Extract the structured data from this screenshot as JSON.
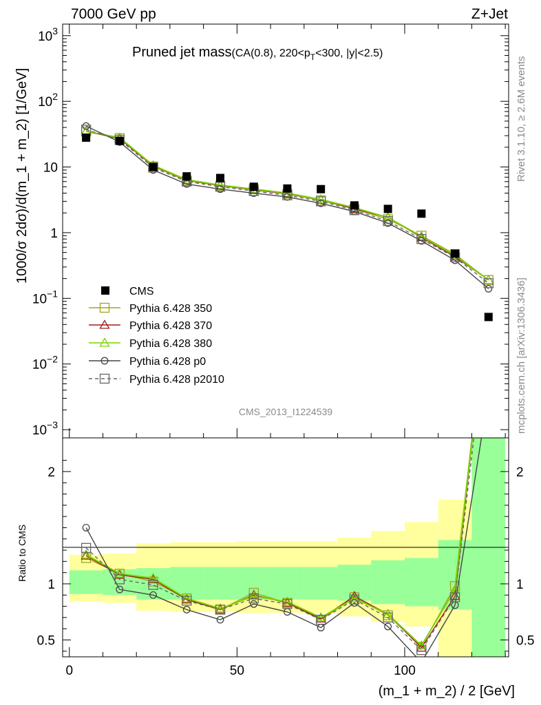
{
  "header": {
    "left": "7000 GeV pp",
    "right": "Z+Jet"
  },
  "title": {
    "main": "Pruned jet mass",
    "sub_a": "(CA(0.8), 220<p",
    "sub_b": "T",
    "sub_c": "<300, |y|<2.5)"
  },
  "side": {
    "top": "Rivet 3.1.10, ≥ 2.6M events",
    "bottom": "mcplots.cern.ch [arXiv:1306.3436]"
  },
  "analysis_id": "CMS_2013_I1224539",
  "axes": {
    "ylabel_main": "1000/σ 2dσ)/d(m_1 + m_2) [1/GeV]",
    "ylabel_ratio": "Ratio to CMS",
    "xlabel": "(m_1 + m_2) / 2 [GeV]",
    "x_ticks": [
      "0",
      "50",
      "100"
    ],
    "y_ticks_main": [
      {
        "base": "10",
        "exp": "3",
        "value": 1000
      },
      {
        "base": "10",
        "exp": "2",
        "value": 100
      },
      {
        "base": "10",
        "exp": "",
        "value": 10
      },
      {
        "base": "1",
        "exp": "",
        "value": 1
      },
      {
        "base": "10",
        "exp": "−1",
        "value": 0.1
      },
      {
        "base": "10",
        "exp": "−2",
        "value": 0.01
      },
      {
        "base": "10",
        "exp": "−3",
        "value": 0.001
      }
    ],
    "y_ticks_ratio": [
      "2",
      "1",
      "0.5"
    ]
  },
  "legend": [
    {
      "label": "CMS"
    },
    {
      "label": "Pythia 6.428 350"
    },
    {
      "label": "Pythia 6.428 370"
    },
    {
      "label": "Pythia 6.428 380"
    },
    {
      "label": "Pythia 6.428 p0"
    },
    {
      "label": "Pythia 6.428 p2010"
    }
  ],
  "chart_data": {
    "type": "line",
    "scale": {
      "x": "linear",
      "y_main": "log",
      "y_ratio": "linear"
    },
    "xlim": [
      -2,
      131
    ],
    "ylim_main": [
      0.00075,
      1500
    ],
    "ylim_ratio": [
      0.35,
      2.3
    ],
    "x": [
      5,
      15,
      25,
      35,
      45,
      55,
      65,
      75,
      85,
      95,
      105,
      115,
      125
    ],
    "bin_edges": [
      0,
      10,
      20,
      30,
      40,
      50,
      60,
      70,
      80,
      90,
      100,
      110,
      120,
      130
    ],
    "reference": {
      "name": "CMS",
      "values": [
        28,
        25,
        10,
        7.2,
        6.8,
        5.0,
        4.7,
        4.6,
        2.6,
        2.3,
        1.95,
        0.48,
        0.052
      ],
      "band_inner": [
        [
          0.91,
          1.12
        ],
        [
          0.9,
          1.13
        ],
        [
          0.86,
          1.14
        ],
        [
          0.86,
          1.15
        ],
        [
          0.86,
          1.15
        ],
        [
          0.86,
          1.15
        ],
        [
          0.86,
          1.15
        ],
        [
          0.86,
          1.15
        ],
        [
          0.85,
          1.17
        ],
        [
          0.82,
          1.21
        ],
        [
          0.8,
          1.23
        ],
        [
          0.77,
          1.39
        ],
        [
          0.35,
          2.3
        ]
      ],
      "band_outer": [
        [
          0.84,
          1.26
        ],
        [
          0.83,
          1.27
        ],
        [
          0.76,
          1.36
        ],
        [
          0.75,
          1.37
        ],
        [
          0.75,
          1.37
        ],
        [
          0.74,
          1.38
        ],
        [
          0.74,
          1.38
        ],
        [
          0.74,
          1.38
        ],
        [
          0.71,
          1.41
        ],
        [
          0.66,
          1.47
        ],
        [
          0.62,
          1.55
        ],
        [
          0.35,
          1.75
        ],
        [
          0.35,
          2.3
        ]
      ]
    },
    "series": [
      {
        "name": "Pythia 6.428 350",
        "color": "#a3a320",
        "marker": "square-open",
        "dash": false,
        "values": [
          34.5,
          27.5,
          10.2,
          6.2,
          5.2,
          4.6,
          3.9,
          3.1,
          2.3,
          1.6,
          0.9,
          0.47,
          0.19
        ],
        "ratio": [
          1.23,
          1.09,
          1.02,
          0.87,
          0.77,
          0.92,
          0.83,
          0.68,
          0.88,
          0.72,
          0.44,
          0.98,
          3.6
        ]
      },
      {
        "name": "Pythia 6.428 370",
        "color": "#a01c1c",
        "marker": "triangle-open",
        "dash": false,
        "values": [
          35,
          27,
          10.4,
          6.3,
          5.2,
          4.5,
          3.9,
          3.2,
          2.3,
          1.7,
          0.85,
          0.43,
          0.19
        ],
        "ratio": [
          1.25,
          1.08,
          1.04,
          0.86,
          0.77,
          0.9,
          0.83,
          0.69,
          0.89,
          0.73,
          0.43,
          0.89,
          3.6
        ]
      },
      {
        "name": "Pythia 6.428 380",
        "color": "#7cd400",
        "marker": "triangle-open",
        "dash": false,
        "values": [
          35,
          28,
          10.6,
          6.4,
          5.3,
          4.6,
          4.0,
          3.2,
          2.4,
          1.7,
          0.88,
          0.45,
          0.19
        ],
        "ratio": [
          1.26,
          1.09,
          1.05,
          0.87,
          0.78,
          0.89,
          0.84,
          0.7,
          0.87,
          0.73,
          0.45,
          0.95,
          3.6
        ]
      },
      {
        "name": "Pythia 6.428 p0",
        "color": "#444444",
        "marker": "circle-open",
        "dash": false,
        "values": [
          42,
          24,
          9.0,
          5.5,
          4.6,
          4.0,
          3.5,
          2.8,
          2.1,
          1.4,
          0.75,
          0.38,
          0.14
        ],
        "ratio": [
          1.5,
          0.95,
          0.9,
          0.77,
          0.68,
          0.82,
          0.75,
          0.61,
          0.83,
          0.62,
          0.3,
          0.81,
          2.7
        ]
      },
      {
        "name": "Pythia 6.428 p2010",
        "color": "#666666",
        "marker": "square-open",
        "dash": true,
        "values": [
          37,
          26,
          9.8,
          6.0,
          5.0,
          4.3,
          3.7,
          3.0,
          2.2,
          1.5,
          0.8,
          0.42,
          0.17
        ],
        "ratio": [
          1.32,
          1.04,
          0.99,
          0.85,
          0.77,
          0.87,
          0.82,
          0.68,
          0.86,
          0.7,
          0.41,
          0.88,
          3.4
        ]
      }
    ]
  }
}
